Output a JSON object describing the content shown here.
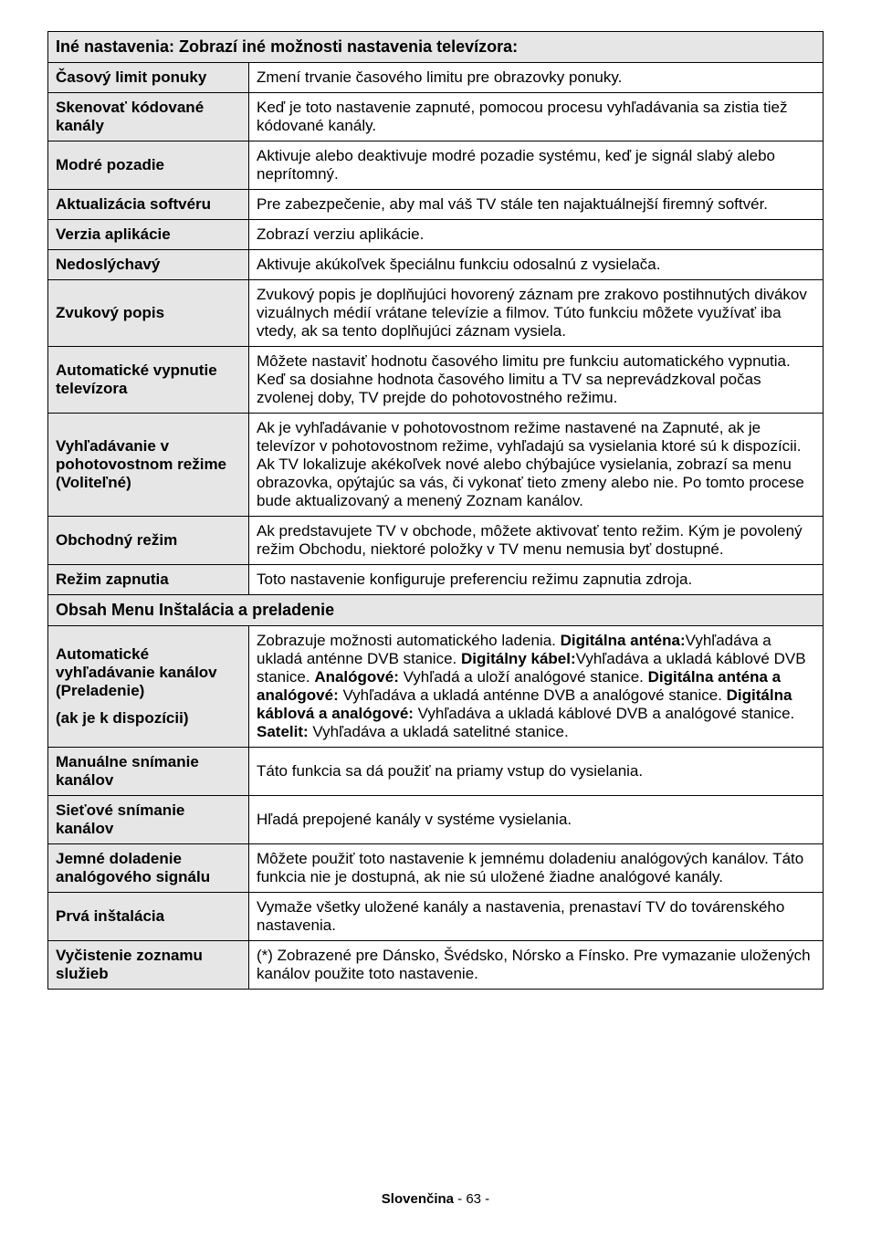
{
  "section1_title": "Iné nastavenia: Zobrazí iné možnosti nastavenia televízora:",
  "rows1": [
    {
      "label": "Časový limit ponuky",
      "desc": "Zmení trvanie časového limitu pre obrazovky ponuky."
    },
    {
      "label": "Skenovať kódované kanály",
      "desc": "Keď je toto nastavenie zapnuté, pomocou procesu vyhľadávania sa zistia tiež kódované kanály."
    },
    {
      "label": "Modré pozadie",
      "desc": "Aktivuje alebo deaktivuje modré pozadie systému, keď je signál slabý alebo neprítomný."
    },
    {
      "label": "Aktualizácia softvéru",
      "desc": "Pre zabezpečenie, aby mal váš TV stále ten najaktuálnejší firemný softvér."
    },
    {
      "label": "Verzia aplikácie",
      "desc": "Zobrazí verziu aplikácie."
    },
    {
      "label": "Nedoslýchavý",
      "desc": "Aktivuje akúkoľvek špeciálnu funkciu odosalnú z vysielača."
    },
    {
      "label": "Zvukový popis",
      "desc": "Zvukový popis je doplňujúci hovorený záznam pre zrakovo postihnutých divákov vizuálnych médií vrátane televízie a filmov. Túto funkciu môžete využívať iba vtedy, ak sa tento doplňujúci záznam vysiela."
    },
    {
      "label": "Automatické vypnutie televízora",
      "desc": "Môžete nastaviť hodnotu časového limitu pre funkciu automatického vypnutia. Keď sa dosiahne hodnota časového limitu a TV sa neprevádzkoval počas zvolenej doby, TV prejde do pohotovostného režimu."
    },
    {
      "label": "Vyhľadávanie v pohotovostnom režime (Voliteľné)",
      "desc": "Ak je vyhľadávanie v pohotovostnom režime nastavené na Zapnuté, ak je televízor v pohotovostnom režime, vyhľadajú sa vysielania ktoré sú k dispozícii. Ak TV lokalizuje akékoľvek nové alebo chýbajúce vysielania, zobrazí sa menu obrazovka, opýtajúc sa vás, či vykonať tieto zmeny alebo nie. Po tomto procese  bude aktualizovaný a menený Zoznam kanálov."
    },
    {
      "label": "Obchodný režim",
      "desc": "Ak predstavujete TV v obchode, môžete aktivovať tento režim. Kým je povolený režim Obchodu, niektoré položky v TV menu nemusia byť dostupné."
    },
    {
      "label": "Režim zapnutia",
      "desc": "Toto nastavenie konfiguruje preferenciu režimu zapnutia zdroja."
    }
  ],
  "section2_title": "Obsah Menu Inštalácia a preladenie",
  "row_auto": {
    "label_line1": "Automatické vyhľadávanie kanálov (Preladenie)",
    "label_line2": "(ak je k dispozícii)",
    "desc_plain1": "Zobrazuje možnosti automatického ladenia. ",
    "desc_b1": "Digitálna anténa:",
    "desc_plain2": "Vyhľadáva a ukladá anténne DVB stanice. ",
    "desc_b2": "Digitálny kábel:",
    "desc_plain3": "Vyhľadáva a ukladá káblové DVB stanice. ",
    "desc_b3": "Analógové:",
    "desc_plain4": " Vyhľadá a uloží analógové stanice. ",
    "desc_b4": "Digitálna anténa a analógové:",
    "desc_plain5": " Vyhľadáva a ukladá anténne DVB a analógové stanice. ",
    "desc_b5": "Digitálna káblová a analógové:",
    "desc_plain6": " Vyhľadáva a ukladá káblové DVB a analógové stanice. ",
    "desc_b6": "Satelit:",
    "desc_plain7": " Vyhľadáva a ukladá satelitné stanice."
  },
  "rows2": [
    {
      "label": "Manuálne snímanie kanálov",
      "desc": "Táto funkcia sa dá použiť na priamy vstup do vysielania."
    },
    {
      "label": "Sieťové snímanie kanálov",
      "desc": "Hľadá prepojené kanály v systéme vysielania."
    },
    {
      "label": "Jemné doladenie analógového signálu",
      "desc": "Môžete použiť toto nastavenie k jemnému doladeniu analógových kanálov. Táto funkcia nie je dostupná, ak nie sú uložené žiadne analógové kanály."
    },
    {
      "label": "Prvá inštalácia",
      "desc": "Vymaže všetky uložené kanály a nastavenia, prenastaví TV do továrenského nastavenia."
    },
    {
      "label": "Vyčistenie zoznamu služieb",
      "desc": "(*) Zobrazené pre Dánsko, Švédsko, Nórsko a Fínsko. Pre vymazanie uložených kanálov použite toto nastavenie."
    }
  ],
  "footer_lang": "Slovenčina",
  "footer_page": "   - 63 -"
}
